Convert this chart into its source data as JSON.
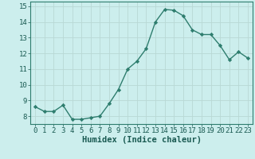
{
  "x": [
    0,
    1,
    2,
    3,
    4,
    5,
    6,
    7,
    8,
    9,
    10,
    11,
    12,
    13,
    14,
    15,
    16,
    17,
    18,
    19,
    20,
    21,
    22,
    23
  ],
  "y": [
    8.6,
    8.3,
    8.3,
    8.7,
    7.8,
    7.8,
    7.9,
    8.0,
    8.8,
    9.7,
    11.0,
    11.5,
    12.3,
    14.0,
    14.8,
    14.75,
    14.4,
    13.5,
    13.2,
    13.2,
    12.5,
    11.6,
    12.1,
    11.7
  ],
  "line_color": "#2e7d6e",
  "bg_color": "#cceeed",
  "grid_color": "#b8d8d5",
  "xlabel": "Humidex (Indice chaleur)",
  "xlim": [
    -0.5,
    23.5
  ],
  "ylim": [
    7.5,
    15.3
  ],
  "yticks": [
    8,
    9,
    10,
    11,
    12,
    13,
    14,
    15
  ],
  "xticks": [
    0,
    1,
    2,
    3,
    4,
    5,
    6,
    7,
    8,
    9,
    10,
    11,
    12,
    13,
    14,
    15,
    16,
    17,
    18,
    19,
    20,
    21,
    22,
    23
  ],
  "xtick_labels": [
    "0",
    "1",
    "2",
    "3",
    "4",
    "5",
    "6",
    "7",
    "8",
    "9",
    "10",
    "11",
    "12",
    "13",
    "14",
    "15",
    "16",
    "17",
    "18",
    "19",
    "20",
    "21",
    "22",
    "23"
  ],
  "marker": "D",
  "marker_size": 2.2,
  "line_width": 1.0,
  "xlabel_fontsize": 7.5,
  "tick_fontsize": 6.5
}
